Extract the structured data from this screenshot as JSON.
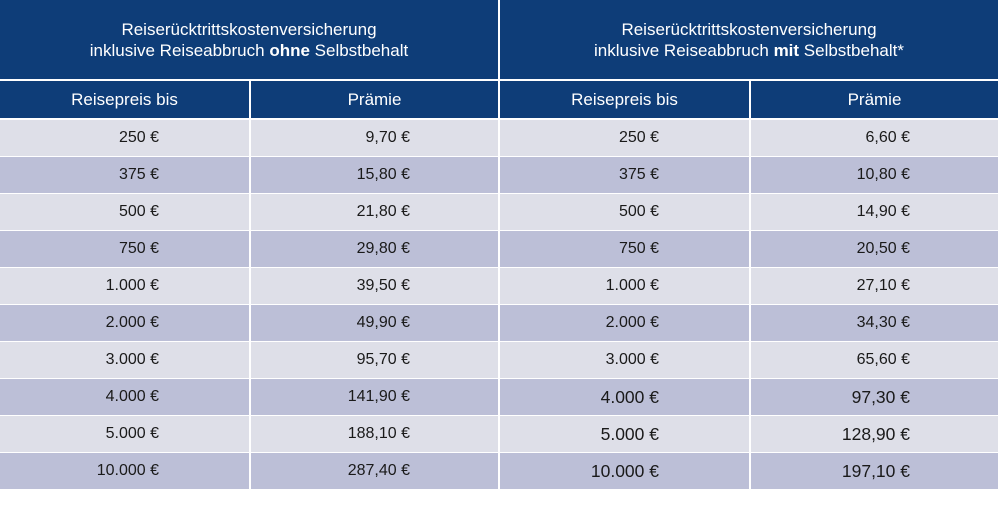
{
  "left_table": {
    "title_line1": "Reiserücktrittskostenversicherung",
    "title_line2_pre": "inklusive Reiseabbruch ",
    "title_line2_bold": "ohne",
    "title_line2_post": " Selbstbehalt",
    "col1": "Reisepreis bis",
    "col2": "Prämie",
    "rows": [
      {
        "price": "250 €",
        "premium": "9,70 €"
      },
      {
        "price": "375 €",
        "premium": "15,80 €"
      },
      {
        "price": "500 €",
        "premium": "21,80 €"
      },
      {
        "price": "750 €",
        "premium": "29,80 €"
      },
      {
        "price": "1.000 €",
        "premium": "39,50 €"
      },
      {
        "price": "2.000 €",
        "premium": "49,90 €"
      },
      {
        "price": "3.000 €",
        "premium": "95,70 €"
      },
      {
        "price": "4.000 €",
        "premium": "141,90 €"
      },
      {
        "price": "5.000 €",
        "premium": "188,10 €"
      },
      {
        "price": "10.000 €",
        "premium": "287,40 €"
      }
    ]
  },
  "right_table": {
    "title_line1": "Reiserücktrittskostenversicherung",
    "title_line2_pre": "inklusive Reiseabbruch ",
    "title_line2_bold": "mit",
    "title_line2_post": " Selbstbehalt*",
    "col1": "Reisepreis bis",
    "col2": "Prämie",
    "rows": [
      {
        "price": "250 €",
        "premium": "6,60 €"
      },
      {
        "price": "375 €",
        "premium": "10,80 €"
      },
      {
        "price": "500 €",
        "premium": "14,90 €"
      },
      {
        "price": "750 €",
        "premium": "20,50 €"
      },
      {
        "price": "1.000 €",
        "premium": "27,10 €"
      },
      {
        "price": "2.000 €",
        "premium": "34,30 €"
      },
      {
        "price": "3.000 €",
        "premium": "65,60 €"
      },
      {
        "price": "4.000 €",
        "premium": "97,30 €"
      },
      {
        "price": "5.000 €",
        "premium": "128,90 €"
      },
      {
        "price": "10.000 €",
        "premium": "197,10 €"
      }
    ]
  },
  "colors": {
    "header_bg": "#0e3d78",
    "row_light": "#dedfe8",
    "row_dark": "#bcbfd7"
  }
}
